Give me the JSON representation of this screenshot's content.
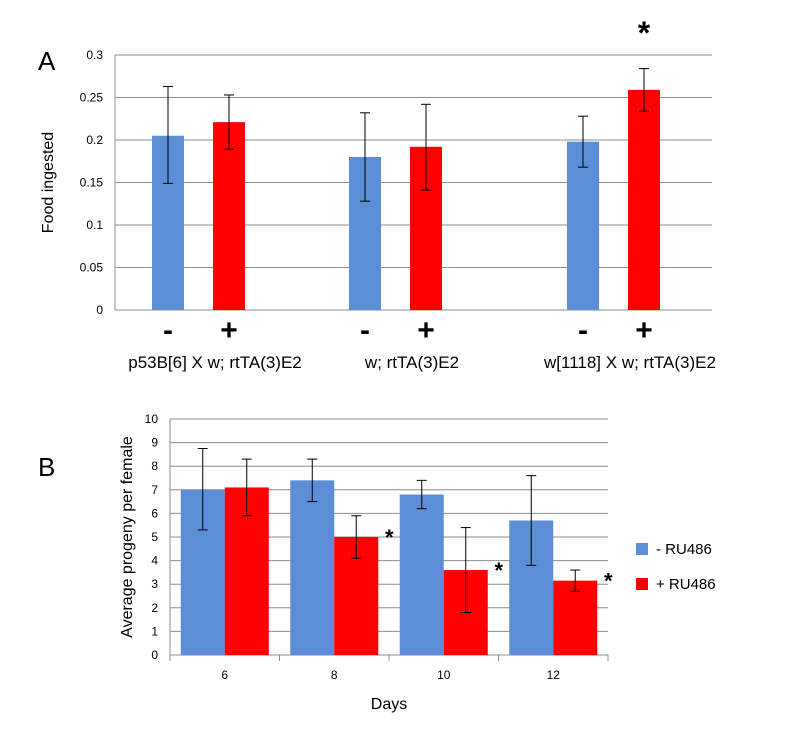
{
  "chart_data": [
    {
      "panel": "A",
      "type": "bar",
      "ylabel": "Food ingested",
      "ylim": [
        0,
        0.3
      ],
      "yticks": [
        "0",
        "0.05",
        "0.1",
        "0.15",
        "0.2",
        "0.25",
        "0.3"
      ],
      "grid": true,
      "groups": [
        {
          "label": "p53B[6] X w; rtTA(3)E2",
          "bars": [
            {
              "treatment": "-",
              "value": 0.205,
              "err_low": 0.149,
              "err_high": 0.263,
              "color": "#5B8ED6"
            },
            {
              "treatment": "+",
              "value": 0.221,
              "err_low": 0.189,
              "err_high": 0.253,
              "color": "#FF0000"
            }
          ]
        },
        {
          "label": "w; rtTA(3)E2",
          "bars": [
            {
              "treatment": "-",
              "value": 0.18,
              "err_low": 0.128,
              "err_high": 0.232,
              "color": "#5B8ED6"
            },
            {
              "treatment": "+",
              "value": 0.192,
              "err_low": 0.141,
              "err_high": 0.242,
              "color": "#FF0000"
            }
          ]
        },
        {
          "label": "w[1118] X w; rtTA(3)E2",
          "bars": [
            {
              "treatment": "-",
              "value": 0.198,
              "err_low": 0.168,
              "err_high": 0.228,
              "color": "#5B8ED6"
            },
            {
              "treatment": "+",
              "value": 0.259,
              "err_low": 0.234,
              "err_high": 0.284,
              "color": "#FF0000",
              "significance": "*"
            }
          ]
        }
      ]
    },
    {
      "panel": "B",
      "type": "bar",
      "xlabel": "Days",
      "ylabel": "Average progeny per female",
      "ylim": [
        0,
        10
      ],
      "yticks": [
        "0",
        "1",
        "2",
        "3",
        "4",
        "5",
        "6",
        "7",
        "8",
        "9",
        "10"
      ],
      "grid": true,
      "categories": [
        "6",
        "8",
        "10",
        "12"
      ],
      "series": [
        {
          "name": "- RU486",
          "color": "#5B8ED6",
          "values": [
            7.0,
            7.4,
            6.8,
            5.7
          ],
          "err_low": [
            5.3,
            6.5,
            6.2,
            3.8
          ],
          "err_high": [
            8.75,
            8.3,
            7.4,
            7.6
          ],
          "significance": [
            "",
            "",
            "",
            ""
          ]
        },
        {
          "name": "+ RU486",
          "color": "#FF0000",
          "values": [
            7.1,
            5.0,
            3.6,
            3.15
          ],
          "err_low": [
            5.9,
            4.1,
            1.8,
            2.7
          ],
          "err_high": [
            8.3,
            5.9,
            5.4,
            3.6
          ],
          "significance": [
            "",
            "*",
            "*",
            "*"
          ]
        }
      ],
      "legend_position": "right"
    }
  ]
}
